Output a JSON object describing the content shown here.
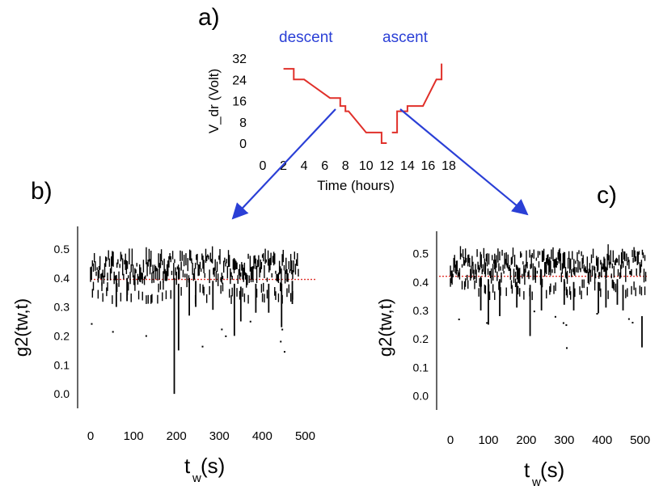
{
  "panel_a": {
    "label": "a)",
    "legend": {
      "descent": "descent",
      "ascent": "ascent"
    },
    "colors": {
      "steps": "#e0302a",
      "arrows": "#2a3fd6",
      "legend_text": "#2a3fd6"
    },
    "chart_data": {
      "type": "line",
      "xlabel": "Time (hours)",
      "ylabel": "V_dr (Volt)",
      "xticks": [
        "0",
        "2",
        "4",
        "6",
        "8",
        "10",
        "12",
        "14",
        "16",
        "18"
      ],
      "yticks": [
        "32",
        "24",
        "16",
        "8",
        "0"
      ],
      "xlim": [
        0,
        18
      ],
      "ylim": [
        0,
        32
      ],
      "series": [
        {
          "name": "descent",
          "x": [
            2,
            3,
            3,
            4,
            6.5,
            7.5,
            7.5,
            8,
            8,
            8.3,
            10,
            11.5,
            11.5,
            12
          ],
          "y": [
            28,
            28,
            24,
            24,
            17,
            17,
            14,
            14,
            12,
            12,
            4,
            4,
            0,
            0
          ]
        },
        {
          "name": "ascent",
          "x": [
            12.5,
            13,
            13,
            14,
            14,
            15.5,
            16.8,
            17.3,
            17.3
          ],
          "y": [
            4,
            4,
            12,
            12,
            14,
            14,
            24,
            24,
            30
          ]
        }
      ]
    }
  },
  "panel_b": {
    "label": "b)",
    "chart_data": {
      "type": "scatter",
      "xlabel_main": "t",
      "xlabel_sub": "w",
      "xlabel_unit": "(s)",
      "ylabel": "g2(tw,t)",
      "xticks": [
        "0",
        "100",
        "200",
        "300",
        "400",
        "500"
      ],
      "yticks": [
        "0.5",
        "0.4",
        "0.3",
        "0.2",
        "0.1",
        "0.0"
      ],
      "xlim": [
        0,
        550
      ],
      "ylim": [
        -0.05,
        0.55
      ],
      "mean_line": 0.395,
      "dips": [
        {
          "x": 195,
          "top": 0.4,
          "bottom": 0.0
        },
        {
          "x": 205,
          "top": 0.38,
          "bottom": 0.15
        },
        {
          "x": 60,
          "top": 0.41,
          "bottom": 0.3
        },
        {
          "x": 85,
          "top": 0.4,
          "bottom": 0.32
        },
        {
          "x": 230,
          "top": 0.4,
          "bottom": 0.27
        },
        {
          "x": 245,
          "top": 0.39,
          "bottom": 0.3
        },
        {
          "x": 285,
          "top": 0.39,
          "bottom": 0.29
        },
        {
          "x": 335,
          "top": 0.38,
          "bottom": 0.2
        },
        {
          "x": 350,
          "top": 0.37,
          "bottom": 0.25
        },
        {
          "x": 385,
          "top": 0.38,
          "bottom": 0.28
        },
        {
          "x": 415,
          "top": 0.38,
          "bottom": 0.28
        },
        {
          "x": 445,
          "top": 0.38,
          "bottom": 0.23
        },
        {
          "x": 470,
          "top": 0.39,
          "bottom": 0.31
        }
      ]
    }
  },
  "panel_c": {
    "label": "c)",
    "chart_data": {
      "type": "scatter",
      "xlabel_main": "t",
      "xlabel_sub": "w",
      "xlabel_unit": "(s)",
      "ylabel": "g2(tw,t)",
      "xticks": [
        "0",
        "100",
        "200",
        "300",
        "400",
        "500"
      ],
      "yticks": [
        "0.5",
        "0.4",
        "0.3",
        "0.2",
        "0.1",
        "0.0"
      ],
      "xlim": [
        -30,
        520
      ],
      "ylim": [
        -0.05,
        0.55
      ],
      "mean_line": 0.42,
      "dips": [
        {
          "x": 80,
          "top": 0.42,
          "bottom": 0.3
        },
        {
          "x": 100,
          "top": 0.41,
          "bottom": 0.25
        },
        {
          "x": 130,
          "top": 0.41,
          "bottom": 0.28
        },
        {
          "x": 175,
          "top": 0.4,
          "bottom": 0.31
        },
        {
          "x": 210,
          "top": 0.39,
          "bottom": 0.21
        },
        {
          "x": 240,
          "top": 0.4,
          "bottom": 0.3
        },
        {
          "x": 300,
          "top": 0.41,
          "bottom": 0.32
        },
        {
          "x": 325,
          "top": 0.4,
          "bottom": 0.3
        },
        {
          "x": 390,
          "top": 0.4,
          "bottom": 0.29
        },
        {
          "x": 410,
          "top": 0.41,
          "bottom": 0.31
        },
        {
          "x": 440,
          "top": 0.41,
          "bottom": 0.32
        },
        {
          "x": 455,
          "top": 0.39,
          "bottom": 0.3
        },
        {
          "x": 505,
          "top": 0.28,
          "bottom": 0.17
        }
      ]
    }
  }
}
